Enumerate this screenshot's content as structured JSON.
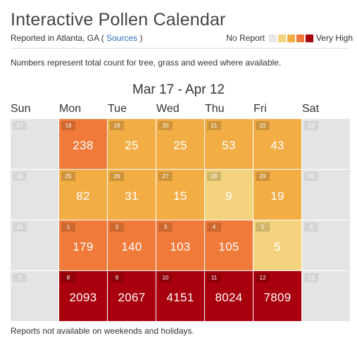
{
  "header": {
    "title": "Interactive Pollen Calendar",
    "subtitle_prefix": "Reported in Atlanta, GA (",
    "sources_link": "Sources",
    "subtitle_suffix": ")"
  },
  "legend": {
    "left_label": "No Report",
    "right_label": "Very High",
    "swatches": [
      "#e8e8e8",
      "#f3d37d",
      "#f2ad45",
      "#f07a3a",
      "#a8000c"
    ]
  },
  "note": "Numbers represent total count for tree, grass and weed where available.",
  "calendar": {
    "range": "Mar 17 - Apr 12",
    "day_names": [
      "Sun",
      "Mon",
      "Tue",
      "Wed",
      "Thu",
      "Fri",
      "Sat"
    ],
    "weeks": [
      [
        {
          "date": "17",
          "value": "",
          "color": "#e4e4e4",
          "weekend": true
        },
        {
          "date": "18",
          "value": "238",
          "color": "#f07a3a"
        },
        {
          "date": "19",
          "value": "25",
          "color": "#f2ad45"
        },
        {
          "date": "20",
          "value": "25",
          "color": "#f2ad45"
        },
        {
          "date": "21",
          "value": "53",
          "color": "#f2ad45"
        },
        {
          "date": "22",
          "value": "43",
          "color": "#f2ad45"
        },
        {
          "date": "23",
          "value": "",
          "color": "#e4e4e4",
          "weekend": true
        }
      ],
      [
        {
          "date": "24",
          "value": "",
          "color": "#e4e4e4",
          "weekend": true
        },
        {
          "date": "25",
          "value": "82",
          "color": "#f2ad45"
        },
        {
          "date": "26",
          "value": "31",
          "color": "#f2ad45"
        },
        {
          "date": "27",
          "value": "15",
          "color": "#f2ad45"
        },
        {
          "date": "28",
          "value": "9",
          "color": "#f3d37d"
        },
        {
          "date": "29",
          "value": "19",
          "color": "#f2ad45"
        },
        {
          "date": "30",
          "value": "",
          "color": "#e4e4e4",
          "weekend": true
        }
      ],
      [
        {
          "date": "31",
          "value": "",
          "color": "#e4e4e4",
          "weekend": true
        },
        {
          "date": "1",
          "value": "179",
          "color": "#f07a3a"
        },
        {
          "date": "2",
          "value": "140",
          "color": "#f07a3a"
        },
        {
          "date": "3",
          "value": "103",
          "color": "#f07a3a"
        },
        {
          "date": "4",
          "value": "105",
          "color": "#f07a3a"
        },
        {
          "date": "5",
          "value": "5",
          "color": "#f3d37d"
        },
        {
          "date": "6",
          "value": "",
          "color": "#e4e4e4",
          "weekend": true
        }
      ],
      [
        {
          "date": "7",
          "value": "",
          "color": "#e4e4e4",
          "weekend": true
        },
        {
          "date": "8",
          "value": "2093",
          "color": "#a8000c"
        },
        {
          "date": "9",
          "value": "2067",
          "color": "#a8000c"
        },
        {
          "date": "10",
          "value": "4151",
          "color": "#a8000c"
        },
        {
          "date": "11",
          "value": "8024",
          "color": "#a8000c"
        },
        {
          "date": "12",
          "value": "7809",
          "color": "#a8000c"
        },
        {
          "date": "13",
          "value": "",
          "color": "#e4e4e4",
          "weekend": true
        }
      ]
    ]
  },
  "footer": "Reports not available on weekends and holidays."
}
